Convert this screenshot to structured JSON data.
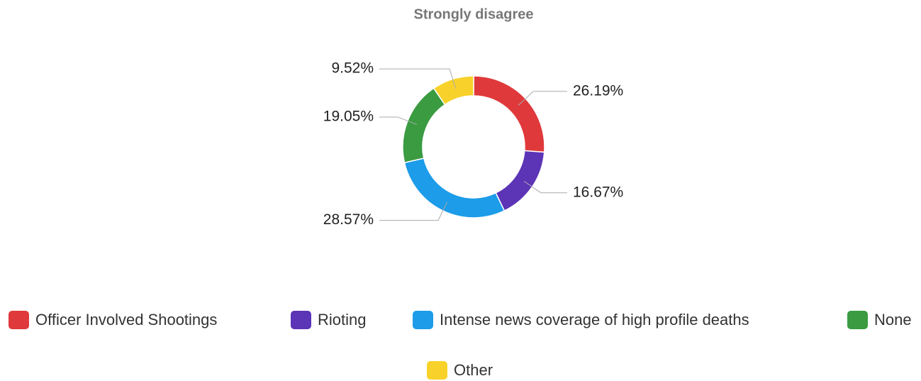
{
  "chart_data": {
    "type": "pie",
    "title": "Strongly disagree",
    "categories": [
      "Officer Involved Shootings",
      "Rioting",
      "Intense news coverage of high profile deaths",
      "None",
      "Other"
    ],
    "values": [
      26.19,
      16.67,
      28.57,
      19.05,
      9.52
    ],
    "value_labels": [
      "26.19%",
      "16.67%",
      "28.57%",
      "19.05%",
      "9.52%"
    ],
    "colors": [
      "#e0393b",
      "#5c34b6",
      "#1c9ce9",
      "#3a9b41",
      "#f8d22b"
    ]
  }
}
